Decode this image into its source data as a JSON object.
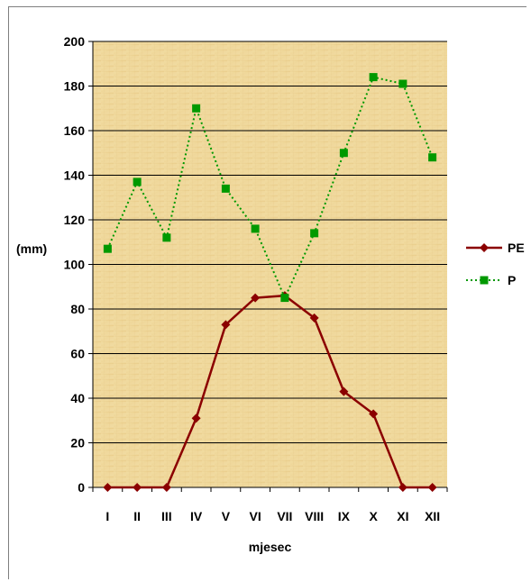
{
  "chart_data": {
    "type": "line",
    "title": "",
    "xlabel": "mjesec",
    "ylabel": "(mm)",
    "ylim": [
      0,
      200
    ],
    "yticks": [
      0,
      20,
      40,
      60,
      80,
      100,
      120,
      140,
      160,
      180,
      200
    ],
    "categories": [
      "I",
      "II",
      "III",
      "IV",
      "V",
      "VI",
      "VII",
      "VIII",
      "IX",
      "X",
      "XI",
      "XII"
    ],
    "grid": true,
    "legend_position": "right",
    "series": [
      {
        "name": "PE",
        "color": "#8b0000",
        "line_style": "solid",
        "marker": "diamond",
        "values": [
          0,
          0,
          0,
          31,
          73,
          85,
          86,
          76,
          43,
          33,
          0,
          0
        ]
      },
      {
        "name": "P",
        "color": "#009900",
        "line_style": "dotted",
        "marker": "square",
        "values": [
          107,
          137,
          112,
          170,
          134,
          116,
          85,
          114,
          150,
          184,
          181,
          148
        ]
      }
    ]
  }
}
